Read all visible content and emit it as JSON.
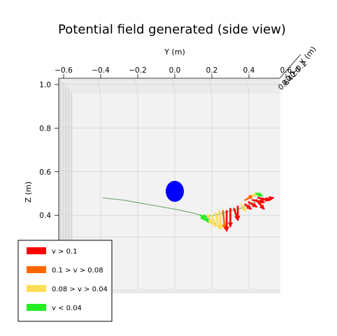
{
  "chart_data": {
    "type": "3d-quiver",
    "title": "Potential field generated (side view)",
    "view": "side",
    "y_axis": {
      "label": "Y (m)",
      "ticks": [
        "−0.6",
        "−0.4",
        "−0.2",
        "0.0",
        "0.2",
        "0.4",
        "0.6"
      ],
      "range": [
        -0.65,
        0.62
      ]
    },
    "z_axis": {
      "label": "Z (m)",
      "ticks": [
        "1.0",
        "0.8",
        "0.6",
        "0.4"
      ],
      "range": [
        0.23,
        1.0
      ]
    },
    "x_axis": {
      "label": "X (m)",
      "ticks": [
        "0.6",
        "0.4",
        "0.2",
        "0.0",
        "−0.2"
      ]
    },
    "grid": true,
    "legend_position": "lower-left",
    "legend": [
      {
        "label": "v > 0.1",
        "color": "#ff0000"
      },
      {
        "label": "0.1 > v > 0.08",
        "color": "#ff6600"
      },
      {
        "label": "0.08 > v > 0.04",
        "color": "#ffdd55"
      },
      {
        "label": "v < 0.04",
        "color": "#22ee22"
      }
    ],
    "obstacle": {
      "y": 0.0,
      "z": 0.51,
      "color": "#0000ff"
    },
    "trajectory": [
      [
        -0.39,
        0.48
      ],
      [
        -0.28,
        0.47
      ],
      [
        -0.18,
        0.455
      ],
      [
        -0.08,
        0.44
      ],
      [
        0.02,
        0.425
      ],
      [
        0.1,
        0.41
      ],
      [
        0.14,
        0.4
      ],
      [
        0.17,
        0.395
      ],
      [
        0.21,
        0.4
      ],
      [
        0.26,
        0.41
      ],
      [
        0.3,
        0.42
      ],
      [
        0.35,
        0.43
      ],
      [
        0.4,
        0.45
      ],
      [
        0.46,
        0.47
      ]
    ],
    "vectors": [
      {
        "y": 0.14,
        "z": 0.4,
        "dy": 0.02,
        "dz": -0.02,
        "v": 0.03
      },
      {
        "y": 0.16,
        "z": 0.4,
        "dy": 0.02,
        "dz": -0.03,
        "v": 0.03
      },
      {
        "y": 0.18,
        "z": 0.4,
        "dy": 0.02,
        "dz": -0.04,
        "v": 0.05
      },
      {
        "y": 0.2,
        "z": 0.4,
        "dy": 0.02,
        "dz": -0.05,
        "v": 0.06
      },
      {
        "y": 0.22,
        "z": 0.41,
        "dy": 0.02,
        "dz": -0.07,
        "v": 0.07
      },
      {
        "y": 0.24,
        "z": 0.42,
        "dy": 0.01,
        "dz": -0.08,
        "v": 0.07
      },
      {
        "y": 0.26,
        "z": 0.42,
        "dy": 0.01,
        "dz": -0.08,
        "v": 0.09
      },
      {
        "y": 0.28,
        "z": 0.42,
        "dy": 0.0,
        "dz": -0.09,
        "v": 0.11
      },
      {
        "y": 0.3,
        "z": 0.43,
        "dy": 0.0,
        "dz": -0.08,
        "v": 0.12
      },
      {
        "y": 0.32,
        "z": 0.43,
        "dy": 0.02,
        "dz": -0.05,
        "v": 0.12
      },
      {
        "y": 0.34,
        "z": 0.44,
        "dy": 0.0,
        "dz": -0.06,
        "v": 0.13
      },
      {
        "y": 0.36,
        "z": 0.45,
        "dy": 0.02,
        "dz": -0.03,
        "v": 0.07
      },
      {
        "y": 0.38,
        "z": 0.45,
        "dy": 0.03,
        "dz": -0.02,
        "v": 0.12
      },
      {
        "y": 0.4,
        "z": 0.46,
        "dy": 0.04,
        "dz": -0.02,
        "v": 0.13
      },
      {
        "y": 0.42,
        "z": 0.47,
        "dy": 0.06,
        "dz": -0.01,
        "v": 0.15
      },
      {
        "y": 0.44,
        "z": 0.47,
        "dy": 0.04,
        "dz": -0.04,
        "v": 0.14
      },
      {
        "y": 0.45,
        "z": 0.48,
        "dy": 0.06,
        "dz": -0.01,
        "v": 0.12
      },
      {
        "y": 0.47,
        "z": 0.47,
        "dy": 0.06,
        "dz": 0.01,
        "v": 0.11
      },
      {
        "y": 0.38,
        "z": 0.47,
        "dy": 0.04,
        "dz": 0.02,
        "v": 0.09
      },
      {
        "y": 0.42,
        "z": 0.49,
        "dy": 0.03,
        "dz": 0.01,
        "v": 0.05
      },
      {
        "y": 0.44,
        "z": 0.5,
        "dy": 0.03,
        "dz": -0.01,
        "v": 0.03
      }
    ]
  }
}
